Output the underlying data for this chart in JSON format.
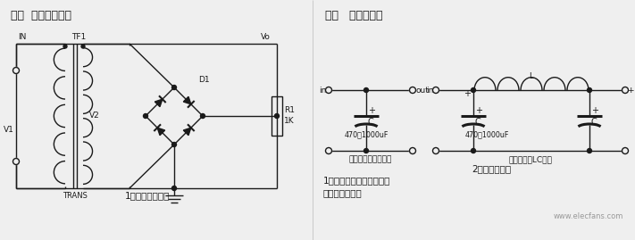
{
  "bg_color": "#efefef",
  "title_left": "一、  桥式整流电路",
  "title_right": "二、   电源滤波器",
  "caption_left": "1、桥式整流电路",
  "caption_right1": "电源滤波－电容滤波",
  "caption_right2": "电源滤波－LC滤波",
  "label_in": "IN",
  "label_tf1": "TF1",
  "label_vo": "Vo",
  "label_v1": "V1",
  "label_v2": "V2",
  "label_d1": "D1",
  "label_r1_1": "R1",
  "label_r1_2": "1K",
  "label_trans": "TRANS",
  "text_2": "2、电源滤波器",
  "text_3": "1、电源滤波的过程分析：",
  "text_4": "波形形成过程：",
  "cap_value": "470～1000uF",
  "ind_label": "L",
  "watermark": "www.elecfans.com"
}
